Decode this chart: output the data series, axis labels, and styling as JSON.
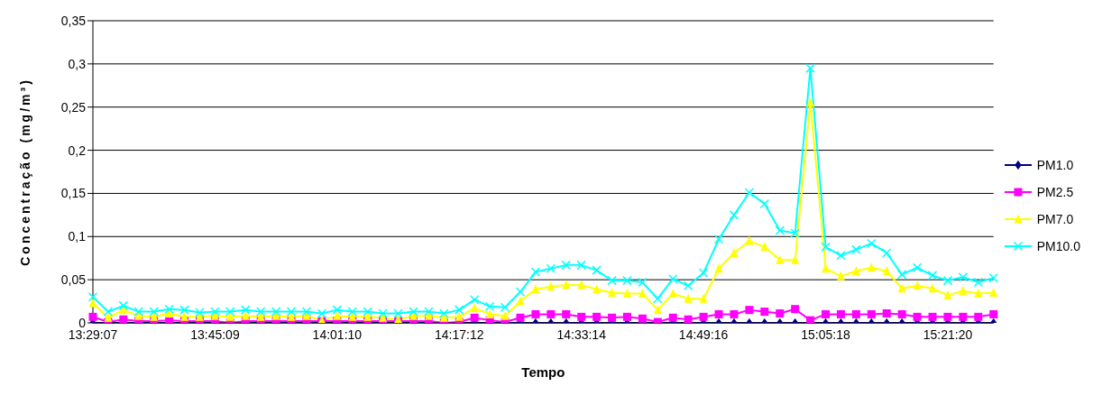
{
  "chart_data": {
    "type": "line",
    "xlabel": "Tempo",
    "ylabel": "Concentração (mg/m³)",
    "categories": [
      "13:29:07",
      null,
      null,
      null,
      null,
      null,
      null,
      null,
      "13:45:09",
      null,
      null,
      null,
      null,
      null,
      null,
      null,
      "14:01:10",
      null,
      null,
      null,
      null,
      null,
      null,
      null,
      "14:17:12",
      null,
      null,
      null,
      null,
      null,
      null,
      null,
      "14:33:14",
      null,
      null,
      null,
      null,
      null,
      null,
      null,
      "14:49:16",
      null,
      null,
      null,
      null,
      null,
      null,
      null,
      "15:05:18",
      null,
      null,
      null,
      null,
      null,
      null,
      null,
      "15:21:20",
      null,
      null,
      null
    ],
    "series": [
      {
        "name": "PM1.0",
        "color": "#000080",
        "marker": "diamond",
        "values": [
          0,
          0,
          0,
          0,
          0,
          0,
          0,
          0,
          0,
          0,
          0,
          0,
          0,
          0,
          0,
          0,
          0,
          0,
          0,
          0,
          0,
          0,
          0,
          0,
          0,
          0,
          0,
          0,
          0,
          0,
          0,
          0,
          0,
          0,
          0,
          0,
          0,
          0,
          0,
          0,
          0,
          0,
          0,
          0,
          0,
          0,
          0,
          0,
          0,
          0,
          0,
          0,
          0,
          0,
          0,
          0,
          0,
          0,
          0,
          0
        ]
      },
      {
        "name": "PM2.5",
        "color": "#ff00ff",
        "marker": "square",
        "values": [
          0.007,
          0.001,
          0.004,
          0.002,
          0.002,
          0.003,
          0.002,
          0.002,
          0.002,
          0,
          0.002,
          0.002,
          0.002,
          0.002,
          0.002,
          0.002,
          0.002,
          0.002,
          0.002,
          0.002,
          0.002,
          0.002,
          0.002,
          0,
          0.001,
          0.006,
          0.003,
          0.001,
          0.006,
          0.01,
          0.01,
          0.01,
          0.007,
          0.007,
          0.006,
          0.007,
          0.005,
          0.001,
          0.006,
          0.004,
          0.007,
          0.01,
          0.01,
          0.015,
          0.013,
          0.011,
          0.016,
          0.003,
          0.01,
          0.01,
          0.01,
          0.01,
          0.011,
          0.01,
          0.007,
          0.007,
          0.007,
          0.007,
          0.007,
          0.01
        ]
      },
      {
        "name": "PM7.0",
        "color": "#ffff00",
        "marker": "triangle",
        "values": [
          0.023,
          0.006,
          0.015,
          0.008,
          0.007,
          0.011,
          0.007,
          0.007,
          0.008,
          0.007,
          0.008,
          0.007,
          0.008,
          0.007,
          0.008,
          0.003,
          0.008,
          0.007,
          0.007,
          0.006,
          0.004,
          0.008,
          0.008,
          0.006,
          0.007,
          0.017,
          0.01,
          0.008,
          0.025,
          0.039,
          0.042,
          0.044,
          0.044,
          0.039,
          0.035,
          0.034,
          0.034,
          0.015,
          0.034,
          0.028,
          0.028,
          0.063,
          0.081,
          0.095,
          0.088,
          0.073,
          0.073,
          0.255,
          0.063,
          0.054,
          0.06,
          0.064,
          0.06,
          0.04,
          0.043,
          0.04,
          0.032,
          0.037,
          0.034,
          0.035
        ]
      },
      {
        "name": "PM10.0",
        "color": "#00ffff",
        "marker": "cross",
        "values": [
          0.03,
          0.013,
          0.02,
          0.013,
          0.013,
          0.016,
          0.015,
          0.012,
          0.013,
          0.013,
          0.015,
          0.013,
          0.013,
          0.013,
          0.013,
          0.011,
          0.015,
          0.013,
          0.013,
          0.011,
          0.011,
          0.013,
          0.013,
          0.011,
          0.015,
          0.027,
          0.019,
          0.018,
          0.036,
          0.059,
          0.063,
          0.067,
          0.067,
          0.061,
          0.049,
          0.049,
          0.047,
          0.028,
          0.051,
          0.043,
          0.058,
          0.097,
          0.125,
          0.151,
          0.138,
          0.107,
          0.104,
          0.295,
          0.088,
          0.078,
          0.085,
          0.092,
          0.081,
          0.056,
          0.064,
          0.055,
          0.049,
          0.053,
          0.047,
          0.052
        ]
      }
    ],
    "ylim": [
      0,
      0.35
    ],
    "yticks": [
      {
        "value": 0,
        "label": "0"
      },
      {
        "value": 0.05,
        "label": "0,05"
      },
      {
        "value": 0.1,
        "label": "0,1"
      },
      {
        "value": 0.15,
        "label": "0,15"
      },
      {
        "value": 0.2,
        "label": "0,2"
      },
      {
        "value": 0.25,
        "label": "0,25"
      },
      {
        "value": 0.3,
        "label": "0,3"
      },
      {
        "value": 0.35,
        "label": "0,35"
      }
    ],
    "grid": "y",
    "legend": "right"
  }
}
